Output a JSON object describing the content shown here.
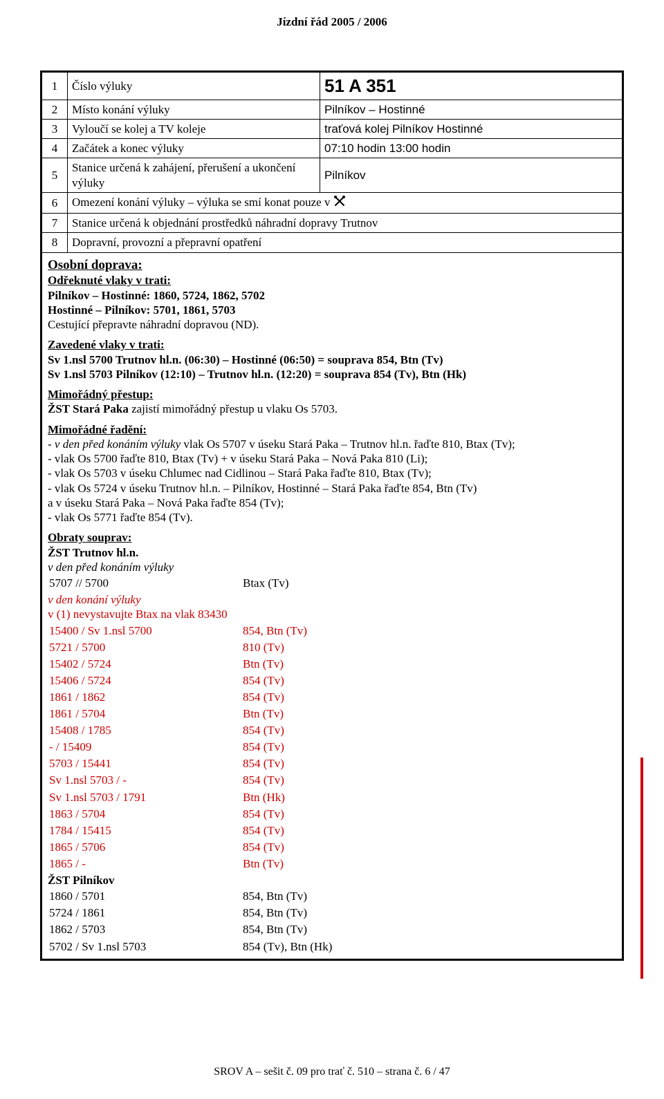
{
  "header": "Jízdní řád 2005 / 2006",
  "info": {
    "r1_num": "1",
    "r1_lbl": "Číslo výluky",
    "r1_val": "51 A  351",
    "r2_num": "2",
    "r2_lbl": "Místo konání výluky",
    "r2_val": "Pilníkov – Hostinné",
    "r3_num": "3",
    "r3_lbl": "Vyloučí se kolej a TV koleje",
    "r3_val": "traťová kolej Pilníkov Hostinné",
    "r4_num": "4",
    "r4_lbl": "Začátek a konec výluky",
    "r4_val": "07:10 hodin 13:00 hodin",
    "r5_num": "5",
    "r5_lbl": "Stanice určená k zahájení, přerušení a ukončení výluky",
    "r5_val": "Pilníkov",
    "r6_num": "6",
    "r6_lbl": "Omezení konání výluky – výluka se smí konat pouze v",
    "r7_num": "7",
    "r7_lbl": "Stanice určená k objednání prostředků náhradní dopravy Trutnov",
    "r8_num": "8",
    "r8_lbl": "Dopravní, provozní a přepravní opatření"
  },
  "osobni": {
    "title": "Osobní doprava:",
    "odreknute_h": "Odřeknuté vlaky v trati:",
    "l1": "Pilníkov – Hostinné: 1860, 5724, 1862, 5702",
    "l2": "Hostinné – Pilníkov: 5701, 1861, 5703",
    "l3": "Cestující přepravte náhradní dopravou (ND)."
  },
  "zavedene": {
    "h": "Zavedené vlaky v trati:",
    "l1": "Sv 1.nsl 5700 Trutnov hl.n. (06:30) – Hostinné (06:50) = souprava 854, Btn (Tv)",
    "l2": "Sv 1.nsl 5703 Pilníkov (12:10) – Trutnov hl.n. (12:20) = souprava 854 (Tv), Btn (Hk)"
  },
  "prestup": {
    "h": "Mimořádný přestup:",
    "l1": "ŽST Stará Paka zajistí mimořádný přestup u vlaku Os 5703."
  },
  "radeni": {
    "h": "Mimořádné řadění:",
    "l1": "- v den před konáním výluky vlak Os 5707 v úseku Stará Paka – Trutnov hl.n. řaďte 810, Btax (Tv);",
    "l2": "- vlak Os 5700 řaďte 810, Btax (Tv) + v úseku Stará Paka – Nová Paka 810 (Li);",
    "l3": "- vlak Os 5703 v úseku Chlumec nad Cidlinou – Stará Paka řaďte 810, Btax (Tv);",
    "l4a": "- vlak Os 5724 v úseku Trutnov hl.n. – Pilníkov, Hostinné – Stará Paka řaďte 854, Btn (Tv)",
    "l4b": "  a v úseku Stará Paka – Nová Paka řaďte 854 (Tv);",
    "l5": "- vlak Os 5771 řaďte 854 (Tv)."
  },
  "obraty": {
    "h": "Obraty souprav:",
    "st1": "ŽST Trutnov hl.n.",
    "pre_day": "v den před konáním výluky",
    "pre_row": {
      "a": "5707 // 5700",
      "b": "Btax (Tv)"
    },
    "day": "v den konání výluky",
    "note": "v (1) nevystavujte Btax na vlak 83430",
    "rows": [
      {
        "a": "15400 / Sv 1.nsl 5700",
        "b": "854, Btn (Tv)"
      },
      {
        "a": "5721 / 5700",
        "b": "810 (Tv)"
      },
      {
        "a": "15402 / 5724",
        "b": "Btn (Tv)"
      },
      {
        "a": "15406 / 5724",
        "b": "854 (Tv)"
      },
      {
        "a": "1861 / 1862",
        "b": "854 (Tv)"
      },
      {
        "a": "1861 / 5704",
        "b": "Btn (Tv)"
      },
      {
        "a": "15408 / 1785",
        "b": "854 (Tv)"
      },
      {
        "a": "- / 15409",
        "b": "854 (Tv)"
      },
      {
        "a": "5703 / 15441",
        "b": "854 (Tv)"
      },
      {
        "a": "Sv 1.nsl 5703 / -",
        "b": "854 (Tv)"
      },
      {
        "a": "Sv 1.nsl 5703 / 1791",
        "b": "Btn (Hk)"
      },
      {
        "a": "1863 / 5704",
        "b": "854 (Tv)"
      },
      {
        "a": "1784 / 15415",
        "b": "854 (Tv)"
      },
      {
        "a": "1865 / 5706",
        "b": "854 (Tv)"
      },
      {
        "a": "1865 / -",
        "b": "Btn (Tv)"
      }
    ],
    "st2": "ŽST Pilníkov",
    "rows2": [
      {
        "a": "1860 / 5701",
        "b": "854, Btn (Tv)"
      },
      {
        "a": "5724 / 1861",
        "b": "854, Btn (Tv)"
      },
      {
        "a": "1862 / 5703",
        "b": "854, Btn (Tv)"
      },
      {
        "a": "5702 / Sv 1.nsl 5703",
        "b": "854 (Tv), Btn (Hk)"
      }
    ]
  },
  "footer": "SROV A – sešit č. 09 pro trať č. 510 – strana č. 6 / 47"
}
